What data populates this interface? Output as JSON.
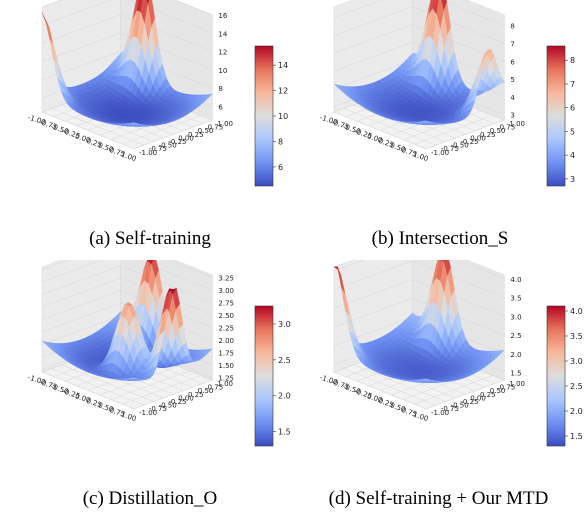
{
  "chart_data": [
    {
      "type": "surface3d",
      "caption": "(a) Self-training",
      "x_ticks": [
        "-1.00",
        "-0.75",
        "-0.50",
        "-0.25",
        "0.00",
        "0.25",
        "0.50",
        "0.75",
        "1.00"
      ],
      "y_ticks": [
        "1.00",
        "0.75",
        "0.50",
        "0.25",
        "0.00",
        "-0.25",
        "-0.50",
        "-0.75",
        "-1.00"
      ],
      "z_ticks": [
        "6",
        "8",
        "10",
        "12",
        "14",
        "16"
      ],
      "zlim": [
        4.5,
        16
      ],
      "colorbar_ticks": [
        "6",
        "8",
        "10",
        "12",
        "14"
      ],
      "colorbar_range": [
        4.5,
        15.5
      ],
      "colormap": [
        "#3b4cc0",
        "#6f92f3",
        "#aac7fd",
        "#dddddd",
        "#f7b89c",
        "#e7745b",
        "#b40426"
      ],
      "surface_peaks": [
        {
          "x": -0.45,
          "y": 1.0,
          "height": 15.5
        },
        {
          "x": -1.0,
          "y": -1.0,
          "height": 12.5
        }
      ],
      "min_value": 4.5
    },
    {
      "type": "surface3d",
      "caption": "(b) Intersection_S",
      "x_ticks": [
        "-1.00",
        "-0.75",
        "-0.50",
        "-0.25",
        "0.00",
        "0.25",
        "0.50",
        "0.75",
        "1.00"
      ],
      "y_ticks": [
        "1.00",
        "0.75",
        "0.50",
        "0.25",
        "0.00",
        "-0.25",
        "-0.50",
        "-0.75",
        "-1.00"
      ],
      "z_ticks": [
        "3",
        "4",
        "5",
        "6",
        "7",
        "8"
      ],
      "zlim": [
        2.7,
        8.6
      ],
      "colorbar_ticks": [
        "3",
        "4",
        "5",
        "6",
        "7",
        "8"
      ],
      "colorbar_range": [
        2.7,
        8.6
      ],
      "colormap": [
        "#3b4cc0",
        "#6f92f3",
        "#aac7fd",
        "#dddddd",
        "#f7b89c",
        "#e7745b",
        "#b40426"
      ],
      "surface_peaks": [
        {
          "x": -0.4,
          "y": 1.0,
          "height": 8.5
        },
        {
          "x": 1.0,
          "y": 0.6,
          "height": 6.0
        }
      ],
      "min_value": 2.8
    },
    {
      "type": "surface3d",
      "caption": "(c) Distillation_O",
      "x_ticks": [
        "-1.00",
        "-0.75",
        "-0.50",
        "-0.25",
        "0.00",
        "0.25",
        "0.50",
        "0.75",
        "1.00"
      ],
      "y_ticks": [
        "1.00",
        "0.75",
        "0.50",
        "0.25",
        "0.00",
        "-0.25",
        "-0.50",
        "-0.75",
        "-1.00"
      ],
      "z_ticks": [
        "1.25",
        "1.50",
        "1.75",
        "2.00",
        "2.25",
        "2.50",
        "2.75",
        "3.00",
        "3.25"
      ],
      "zlim": [
        1.2,
        3.3
      ],
      "colorbar_ticks": [
        "1.5",
        "2.0",
        "2.5",
        "3.0"
      ],
      "colorbar_range": [
        1.3,
        3.25
      ],
      "colormap": [
        "#3b4cc0",
        "#6f92f3",
        "#aac7fd",
        "#dddddd",
        "#f7b89c",
        "#e7745b",
        "#b40426"
      ],
      "surface_peaks": [
        {
          "x": -0.3,
          "y": 1.0,
          "height": 3.0
        },
        {
          "x": 1.0,
          "y": 0.0,
          "height": 3.2
        },
        {
          "x": 0.2,
          "y": -0.2,
          "height": 2.8
        }
      ],
      "min_value": 1.3
    },
    {
      "type": "surface3d",
      "caption": "(d) Self-training + Our MTD",
      "x_ticks": [
        "-1.00",
        "-0.75",
        "-0.50",
        "-0.25",
        "0.00",
        "0.25",
        "0.50",
        "0.75",
        "1.00"
      ],
      "y_ticks": [
        "1.00",
        "0.75",
        "0.50",
        "0.25",
        "0.00",
        "-0.25",
        "-0.50",
        "-0.75",
        "-1.00"
      ],
      "z_ticks": [
        "1.5",
        "2.0",
        "2.5",
        "3.0",
        "3.5",
        "4.0"
      ],
      "zlim": [
        1.3,
        4.1
      ],
      "colorbar_ticks": [
        "1.5",
        "2.0",
        "2.5",
        "3.0",
        "3.5",
        "4.0"
      ],
      "colorbar_range": [
        1.3,
        4.1
      ],
      "colormap": [
        "#3b4cc0",
        "#6f92f3",
        "#aac7fd",
        "#dddddd",
        "#f7b89c",
        "#e7745b",
        "#b40426"
      ],
      "surface_peaks": [
        {
          "x": -0.3,
          "y": 1.0,
          "height": 3.8
        },
        {
          "x": -1.0,
          "y": -1.0,
          "height": 3.6
        }
      ],
      "min_value": 1.4
    }
  ]
}
